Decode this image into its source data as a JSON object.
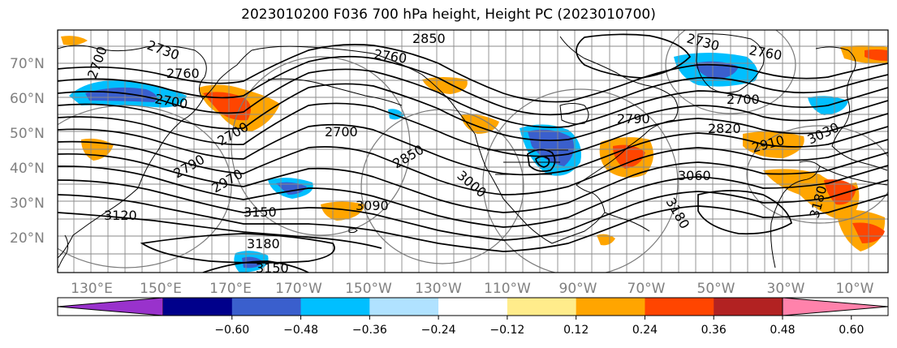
{
  "title": "2023010200 F036 700 hPa height, Height PC (2023010700)",
  "map": {
    "lat_ticks": [
      "70°N",
      "60°N",
      "50°N",
      "40°N",
      "30°N",
      "20°N"
    ],
    "lon_ticks": [
      "130°E",
      "150°E",
      "170°E",
      "170°W",
      "150°W",
      "130°W",
      "110°W",
      "90°W",
      "70°W",
      "50°W",
      "30°W",
      "10°W"
    ],
    "contour_labels": [
      "2730",
      "2700",
      "2760",
      "2700",
      "2850",
      "2760",
      "2700",
      "2790",
      "2700",
      "2970",
      "3120",
      "3150",
      "3180",
      "3150",
      "3090",
      "2850",
      "3000",
      "2730",
      "2760",
      "2700",
      "2820",
      "2790",
      "3060",
      "3180",
      "2910",
      "3030",
      "3180"
    ],
    "colors": {
      "blue_dark": "#3050c8",
      "blue": "#00bfff",
      "blue_light": "#b0e2ff",
      "yellow": "#ffe680",
      "orange": "#ffa500",
      "red_orange": "#ff4500",
      "dark_red": "#b22222"
    }
  },
  "colorbar": {
    "colors": [
      "#9932cc",
      "#00008b",
      "#3a5fcd",
      "#00bfff",
      "#b0e2ff",
      "#ffffff",
      "#ffec8b",
      "#ffa500",
      "#ff4500",
      "#b22222",
      "#ff82ab"
    ],
    "tick_labels": [
      "−0.60",
      "−0.48",
      "−0.36",
      "−0.24",
      "−0.12",
      "0.12",
      "0.24",
      "0.36",
      "0.48",
      "0.60"
    ]
  }
}
